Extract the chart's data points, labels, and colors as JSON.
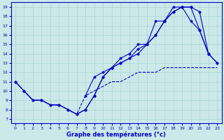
{
  "bg_color": "#cce8e8",
  "line_color": "#0000cc",
  "xlabel": "Graphe des températures (°c)",
  "xlabel_color": "#0000cc",
  "tick_color": "#0000cc",
  "xlim": [
    -0.5,
    23.5
  ],
  "ylim": [
    6.5,
    19.5
  ],
  "xticks": [
    0,
    1,
    2,
    3,
    4,
    5,
    6,
    7,
    8,
    9,
    10,
    11,
    12,
    13,
    14,
    15,
    16,
    17,
    18,
    19,
    20,
    21,
    22,
    23
  ],
  "yticks": [
    7,
    8,
    9,
    10,
    11,
    12,
    13,
    14,
    15,
    16,
    17,
    18,
    19
  ],
  "line1_x": [
    0,
    1,
    2,
    3,
    4,
    5,
    6,
    7,
    8,
    9,
    10,
    11,
    12,
    13,
    14,
    15,
    16,
    17,
    18,
    19,
    20,
    21,
    22
  ],
  "line1_y": [
    11,
    10,
    9,
    9,
    8.5,
    8.5,
    8,
    7.5,
    8,
    9.5,
    11.5,
    12.5,
    13.5,
    14,
    15,
    15,
    17.5,
    17.5,
    19,
    19,
    19,
    18.5,
    14
  ],
  "line2_x": [
    0,
    1,
    2,
    3,
    4,
    5,
    6,
    7,
    8,
    9,
    10,
    11,
    12,
    13,
    14,
    15,
    16,
    17,
    18,
    19,
    20,
    21,
    22,
    23
  ],
  "line2_y": [
    11,
    10,
    9,
    9,
    8.5,
    8.5,
    8,
    7.5,
    8,
    9.5,
    11.5,
    12.5,
    13,
    13.5,
    14.5,
    15,
    16,
    17.5,
    18.5,
    19,
    19,
    16.5,
    14,
    13
  ],
  "line3_x": [
    0,
    1,
    2,
    3,
    4,
    5,
    6,
    7,
    8,
    9,
    10,
    11,
    12,
    13,
    14,
    15,
    16,
    17,
    18,
    19,
    20,
    21,
    22,
    23
  ],
  "line3_y": [
    11,
    10,
    9,
    9,
    8.5,
    8.5,
    8,
    7.5,
    9.5,
    10,
    10.5,
    11,
    11,
    11.5,
    12,
    12,
    12,
    12.5,
    12.5,
    12.5,
    12.5,
    12.5,
    12.5,
    12.5
  ],
  "line4_x": [
    8,
    9,
    10,
    11,
    12,
    13,
    14,
    15,
    16,
    17,
    18,
    19,
    20,
    21,
    22,
    23
  ],
  "line4_y": [
    9.5,
    11.5,
    12,
    12.5,
    13,
    13.5,
    14,
    15,
    16,
    17.5,
    18.5,
    19,
    17.5,
    16.5,
    14,
    13
  ],
  "grid_color": "#aad4d4",
  "grid_lw": 0.5
}
